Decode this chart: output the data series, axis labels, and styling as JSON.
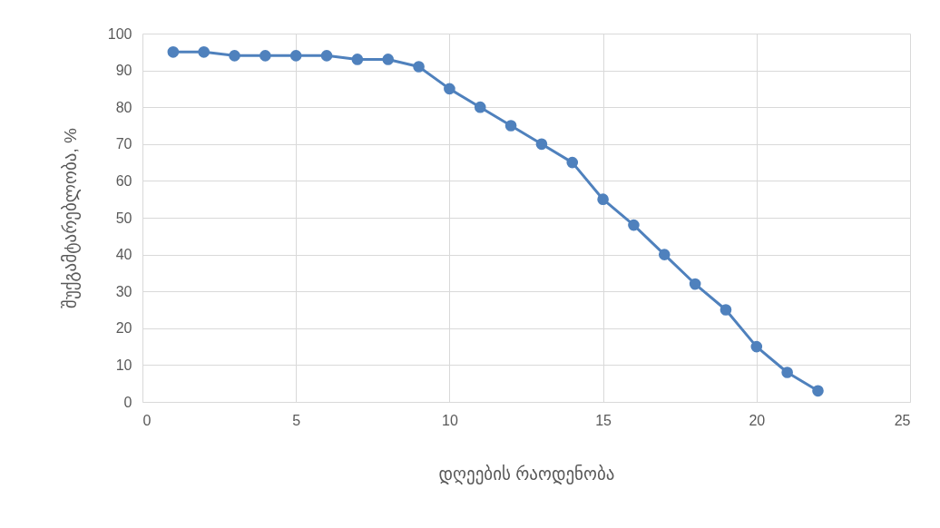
{
  "chart_data": {
    "type": "line",
    "xlabel": "დღეების რაოდენობა",
    "ylabel": "შუქგამტარებლობა, %",
    "x": [
      1,
      2,
      3,
      4,
      5,
      6,
      7,
      8,
      9,
      10,
      11,
      12,
      13,
      14,
      15,
      16,
      17,
      18,
      19,
      20,
      21,
      22
    ],
    "series": [
      {
        "color": "#4f81bd",
        "values": [
          95,
          95,
          94,
          94,
          94,
          94,
          93,
          93,
          91,
          85,
          80,
          75,
          70,
          65,
          55,
          48,
          40,
          32,
          25,
          15,
          8,
          3
        ]
      }
    ],
    "xlim": [
      0,
      25
    ],
    "xticks": [
      0,
      5,
      10,
      15,
      20,
      25
    ],
    "ylim": [
      0,
      100
    ],
    "yticks": [
      0,
      10,
      20,
      30,
      40,
      50,
      60,
      70,
      80,
      90,
      100
    ],
    "grid": true,
    "marker": "circle",
    "line_style": "solid"
  }
}
